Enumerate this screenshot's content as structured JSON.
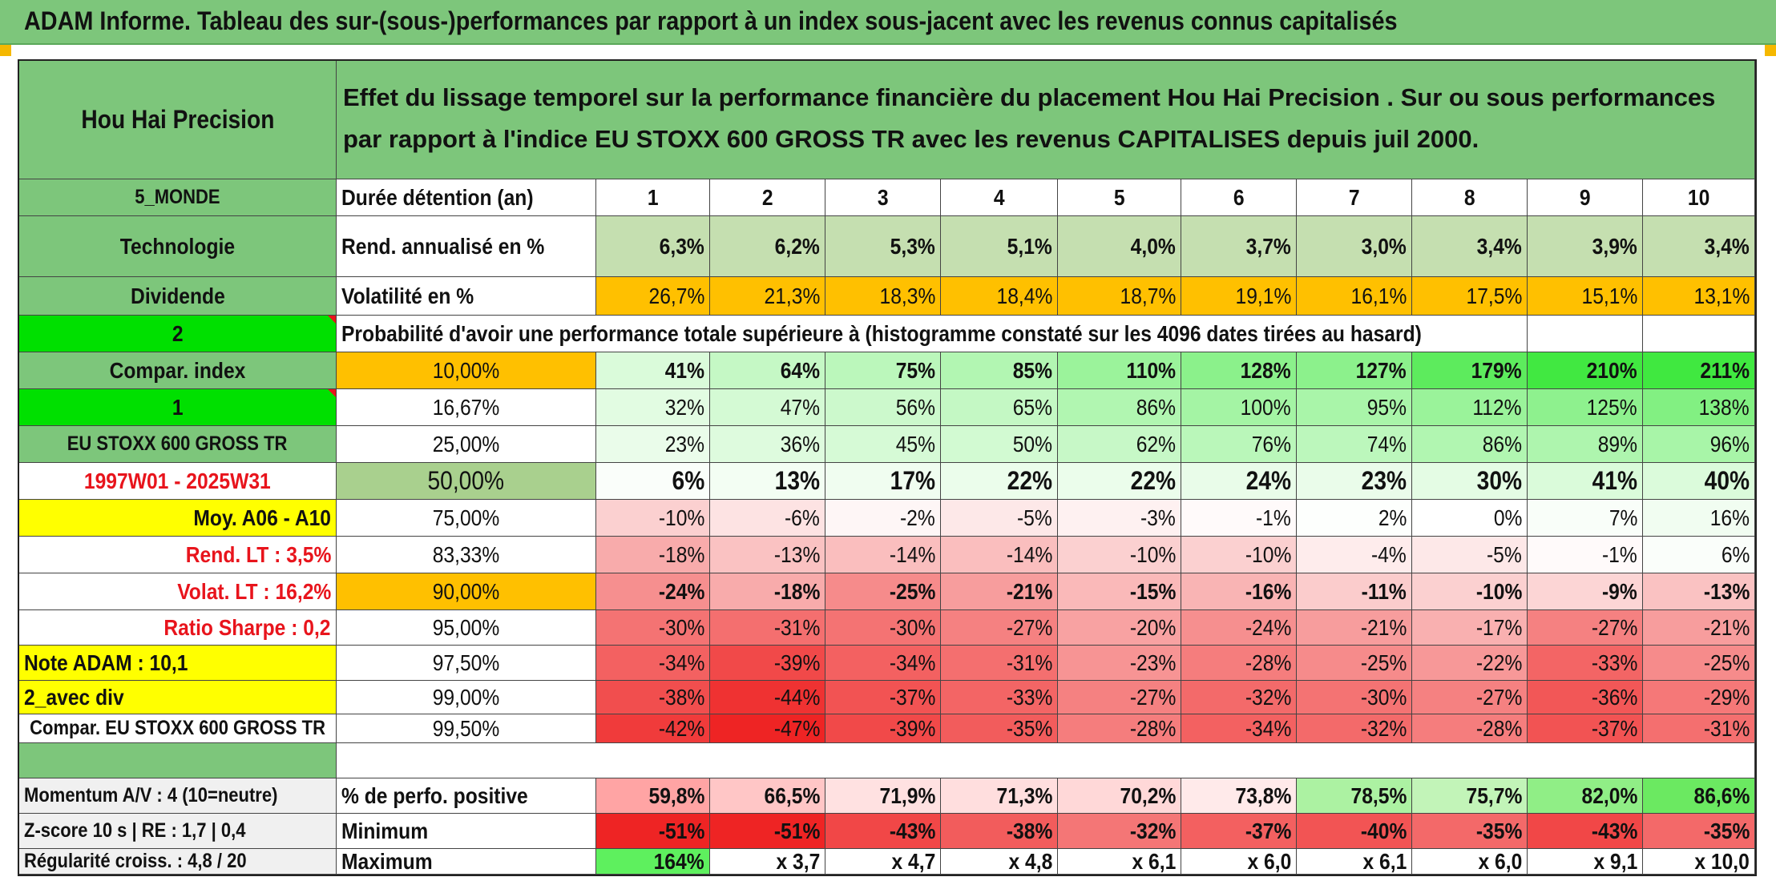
{
  "title": "ADAM Informe. Tableau des sur-(sous-)performances par rapport à un index sous-jacent avec les revenus connus capitalisés",
  "colors": {
    "header_green": "#7dc67b",
    "orange": "#ffc000",
    "yellow": "#ffff00",
    "bright_green": "#00e000",
    "label_red": "#e8141c"
  },
  "sidebar": {
    "fund_name": "Hou Hai Precision",
    "region": "5_MONDE",
    "sector": "Technologie",
    "dividend_label": "Dividende",
    "value_2": "2",
    "compar_index_label": "Compar. index",
    "value_1": "1",
    "index_name": "EU STOXX 600 GROSS TR",
    "period": "1997W01 - 2025W31",
    "moy": "Moy. A06 - A10",
    "rend_lt": "Rend. LT :   3,5%",
    "volat_lt": "Volat. LT :   16,2%",
    "ratio_sharpe": "Ratio Sharpe :   0,2",
    "note_adam": "Note ADAM : 10,1",
    "avec_div": "2_avec div",
    "compar_full": "Compar. EU STOXX 600 GROSS TR",
    "momentum": "Momentum A/V : 4 (10=neutre)",
    "zscore": "Z-score 10 s | RE : 1,7 | 0,4",
    "regularite": "Régularité croiss. : 4,8 / 20"
  },
  "description": "Effet du lissage temporel sur la performance financière du placement Hou Hai Precision . Sur ou sous performances par rapport à l'indice EU STOXX 600 GROSS TR avec les revenus CAPITALISES depuis juil 2000.",
  "row_labels": {
    "duree": "Durée détention (an)",
    "rend": "Rend. annualisé en %",
    "volat": "Volatilité en %",
    "proba": "Probabilité d'avoir une performance totale supérieure à (histogramme constaté sur les 4096 dates tirées au hasard)",
    "positive": "% de perfo. positive",
    "minimum": "Minimum",
    "maximum": "Maximum"
  },
  "years": [
    "1",
    "2",
    "3",
    "4",
    "5",
    "6",
    "7",
    "8",
    "9",
    "10"
  ],
  "rend": [
    "6,3%",
    "6,2%",
    "5,3%",
    "5,1%",
    "4,0%",
    "3,7%",
    "3,0%",
    "3,4%",
    "3,9%",
    "3,4%"
  ],
  "volat": [
    "26,7%",
    "21,3%",
    "18,3%",
    "18,4%",
    "18,7%",
    "19,1%",
    "16,1%",
    "17,5%",
    "15,1%",
    "13,1%"
  ],
  "prob_rows": [
    {
      "pct": "10,00%",
      "values": [
        "41%",
        "64%",
        "75%",
        "85%",
        "110%",
        "128%",
        "127%",
        "179%",
        "210%",
        "211%"
      ]
    },
    {
      "pct": "16,67%",
      "values": [
        "32%",
        "47%",
        "56%",
        "65%",
        "86%",
        "100%",
        "95%",
        "112%",
        "125%",
        "138%"
      ]
    },
    {
      "pct": "25,00%",
      "values": [
        "23%",
        "36%",
        "45%",
        "50%",
        "62%",
        "76%",
        "74%",
        "86%",
        "89%",
        "96%"
      ]
    },
    {
      "pct": "50,00%",
      "values": [
        "6%",
        "13%",
        "17%",
        "22%",
        "22%",
        "24%",
        "23%",
        "30%",
        "41%",
        "40%"
      ]
    },
    {
      "pct": "75,00%",
      "values": [
        "-10%",
        "-6%",
        "-2%",
        "-5%",
        "-3%",
        "-1%",
        "2%",
        "0%",
        "7%",
        "16%"
      ]
    },
    {
      "pct": "83,33%",
      "values": [
        "-18%",
        "-13%",
        "-14%",
        "-14%",
        "-10%",
        "-10%",
        "-4%",
        "-5%",
        "-1%",
        "6%"
      ]
    },
    {
      "pct": "90,00%",
      "values": [
        "-24%",
        "-18%",
        "-25%",
        "-21%",
        "-15%",
        "-16%",
        "-11%",
        "-10%",
        "-9%",
        "-13%"
      ]
    },
    {
      "pct": "95,00%",
      "values": [
        "-30%",
        "-31%",
        "-30%",
        "-27%",
        "-20%",
        "-24%",
        "-21%",
        "-17%",
        "-27%",
        "-21%"
      ]
    },
    {
      "pct": "97,50%",
      "values": [
        "-34%",
        "-39%",
        "-34%",
        "-31%",
        "-23%",
        "-28%",
        "-25%",
        "-22%",
        "-33%",
        "-25%"
      ]
    },
    {
      "pct": "99,00%",
      "values": [
        "-38%",
        "-44%",
        "-37%",
        "-33%",
        "-27%",
        "-32%",
        "-30%",
        "-27%",
        "-36%",
        "-29%"
      ]
    },
    {
      "pct": "99,50%",
      "values": [
        "-42%",
        "-47%",
        "-39%",
        "-35%",
        "-28%",
        "-34%",
        "-32%",
        "-28%",
        "-37%",
        "-31%"
      ]
    }
  ],
  "positive": [
    "59,8%",
    "66,5%",
    "71,9%",
    "71,3%",
    "70,2%",
    "73,8%",
    "78,5%",
    "75,7%",
    "82,0%",
    "86,6%"
  ],
  "minimum": [
    "-51%",
    "-51%",
    "-43%",
    "-38%",
    "-32%",
    "-37%",
    "-40%",
    "-35%",
    "-43%",
    "-35%"
  ],
  "maximum": [
    "164%",
    "x 3,7",
    "x 4,7",
    "x 4,8",
    "x 6,1",
    "x 6,0",
    "x 6,1",
    "x 6,0",
    "x 9,1",
    "x 10,0"
  ]
}
